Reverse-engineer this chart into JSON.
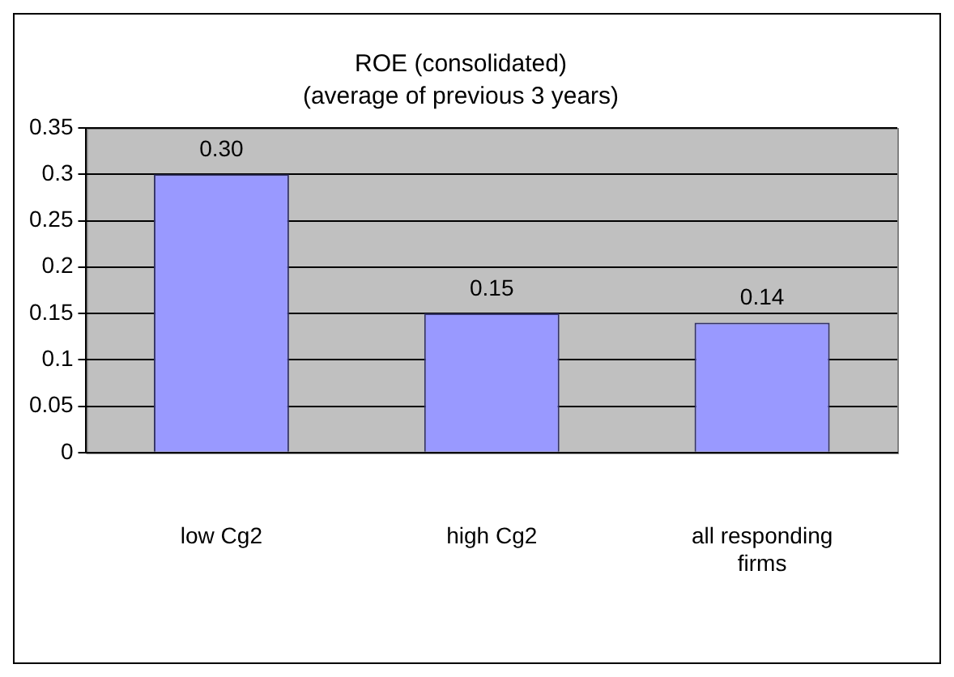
{
  "chart_data": {
    "type": "bar",
    "title": "ROE (consolidated)",
    "subtitle": "(average of previous 3 years)",
    "categories": [
      "low Cg2",
      "high Cg2",
      "all responding firms"
    ],
    "values": [
      0.3,
      0.15,
      0.14
    ],
    "value_labels": [
      "0.30",
      "0.15",
      "0.14"
    ],
    "color": "#9999ff",
    "ylim": [
      0,
      0.35
    ],
    "yticks": [
      0,
      0.05,
      0.1,
      0.15,
      0.2,
      0.25,
      0.3,
      0.35
    ],
    "grid": "y",
    "legend": false
  }
}
